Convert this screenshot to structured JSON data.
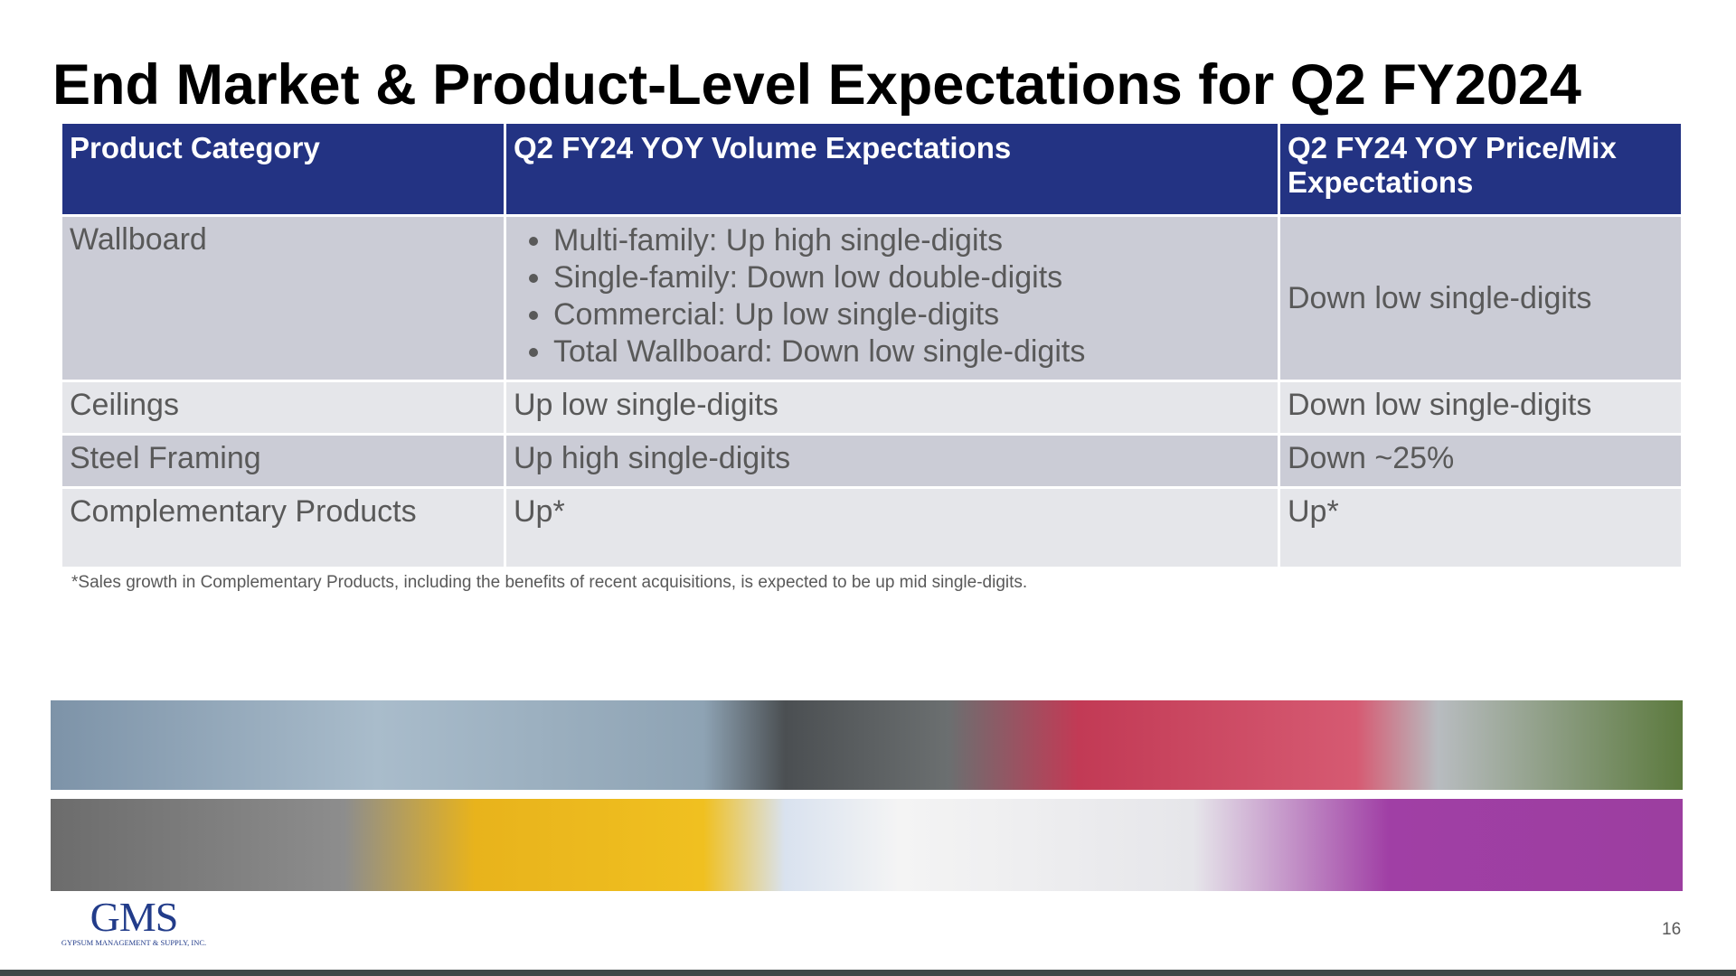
{
  "title": "End Market & Product-Level Expectations for Q2 FY2024",
  "table": {
    "headers": [
      "Product Category",
      "Q2 FY24 YOY Volume Expectations",
      "Q2 FY24 YOY Price/Mix Expectations"
    ],
    "rows": [
      [
        "Wallboard",
        [
          "Multi-family:  Up high single-digits",
          "Single-family: Down low double-digits",
          "Commercial: Up low single-digits",
          "Total Wallboard: Down low single-digits"
        ],
        "Down low single-digits"
      ],
      [
        "Ceilings",
        "Up low single-digits",
        "Down low single-digits"
      ],
      [
        "Steel Framing",
        "Up high single-digits",
        "Down ~25%"
      ],
      [
        "Complementary Products",
        "Up*",
        "Up*"
      ]
    ]
  },
  "footnote": "*Sales growth in Complementary Products, including the benefits of recent acquisitions, is expected to be up mid single-digits.",
  "logo": {
    "name": "GMS",
    "subtitle": "GYPSUM MANAGEMENT & SUPPLY, INC."
  },
  "page_number": "16"
}
